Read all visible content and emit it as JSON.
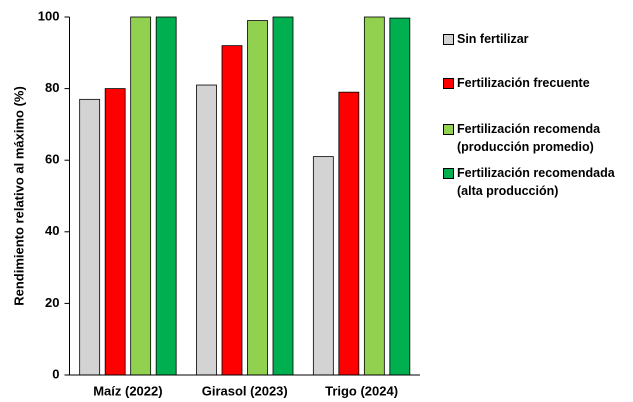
{
  "chart_data": {
    "type": "bar",
    "y_label": "Rendimiento relativo al máximo (%)",
    "categories": [
      "Maíz (2022)",
      "Girasol (2023)",
      "Trigo (2024)"
    ],
    "series": [
      {
        "name": "Sin fertilizar",
        "color": "#d3d3d3",
        "values": [
          77,
          81,
          61
        ]
      },
      {
        "name": "Fertilización frecuente",
        "color": "#ff0000",
        "values": [
          80,
          92,
          79
        ]
      },
      {
        "name": "Fertilización recomenda\n(producción promedio)",
        "color": "#92d050",
        "values": [
          100,
          99,
          100
        ]
      },
      {
        "name": "Fertilización recomendada\n(alta producción)",
        "color": "#00b050",
        "values": [
          100,
          100,
          99.7
        ]
      }
    ],
    "ylim": [
      0,
      100
    ],
    "yticks": [
      0,
      20,
      40,
      60,
      80,
      100
    ],
    "grid": false
  }
}
